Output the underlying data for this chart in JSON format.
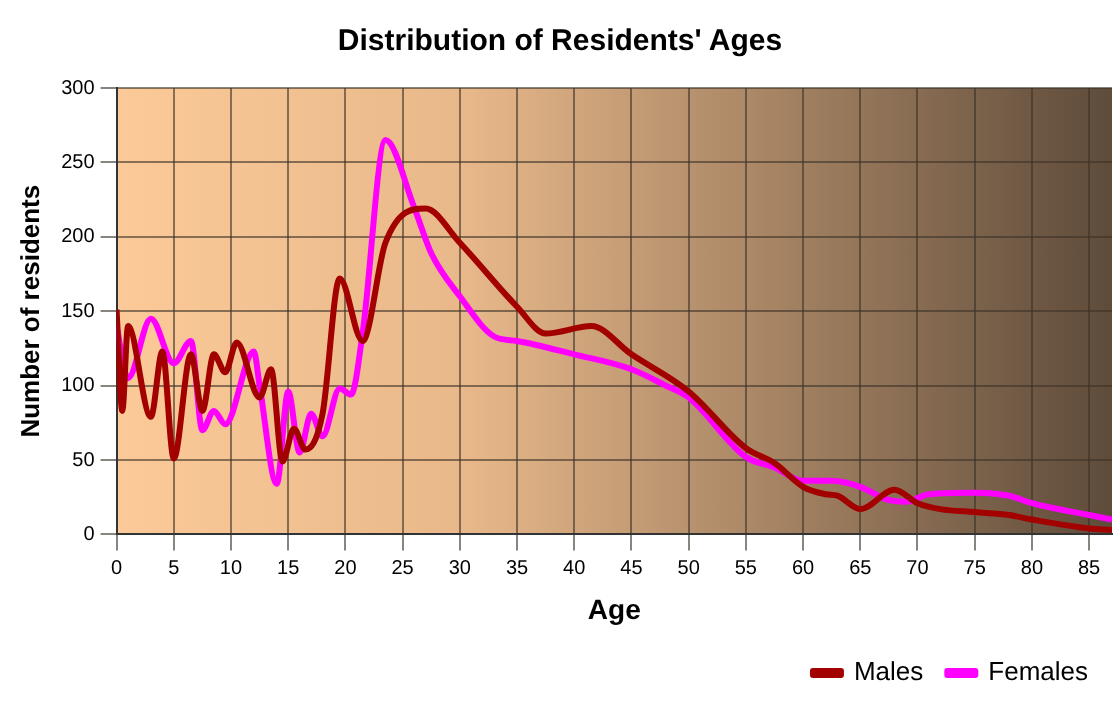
{
  "chart_data": {
    "type": "line",
    "title": "Distribution of Residents' Ages",
    "xlabel": "Age",
    "ylabel": "Number of residents",
    "xlim": [
      0,
      87
    ],
    "xticks": [
      0,
      5,
      10,
      15,
      20,
      25,
      30,
      35,
      40,
      45,
      50,
      55,
      60,
      65,
      70,
      75,
      80,
      85
    ],
    "ylim": [
      0,
      300
    ],
    "yticks": [
      0,
      50,
      100,
      150,
      200,
      250,
      300
    ],
    "grid": true,
    "legend": "bottom right",
    "marker": "none",
    "line_style": "solid",
    "series": [
      {
        "name": "Males",
        "color": "#a30000",
        "x": [
          0,
          0.5,
          1,
          3,
          4,
          5,
          6.5,
          7.5,
          8.5,
          9.5,
          10.5,
          12.5,
          13.5,
          14.5,
          15.5,
          16.5,
          18,
          19.5,
          21.5,
          23.5,
          27,
          30,
          35,
          37.5,
          41.5,
          45,
          50,
          55,
          57.5,
          60,
          62,
          63,
          65,
          68,
          70,
          72,
          75,
          78,
          80,
          85,
          87
        ],
        "values": [
          151,
          83,
          140,
          79,
          123,
          51,
          121,
          83,
          121,
          109,
          129,
          92,
          111,
          49,
          71,
          57,
          81,
          172,
          130,
          196,
          219,
          196,
          153,
          135,
          140,
          121,
          96,
          58,
          48,
          32,
          27,
          26,
          17,
          30,
          21,
          17,
          15,
          13,
          10,
          4,
          3
        ]
      },
      {
        "name": "Females",
        "color": "#ff00ff",
        "x": [
          0,
          1,
          3,
          5,
          6.5,
          7.5,
          8.5,
          9.5,
          12,
          12.5,
          14,
          15,
          16,
          17,
          18,
          19.5,
          20.5,
          21.5,
          23.5,
          26,
          27.5,
          30,
          33,
          35,
          40,
          45,
          48,
          50,
          55,
          57.5,
          60,
          62.5,
          65,
          67.5,
          69,
          71,
          75,
          78,
          80,
          85,
          87
        ],
        "values": [
          140,
          105,
          145,
          115,
          130,
          70,
          83,
          74,
          123,
          100,
          34,
          96,
          55,
          81,
          66,
          98,
          94,
          135,
          265,
          220,
          189,
          160,
          133,
          130,
          121,
          111,
          100,
          92,
          52,
          45,
          36,
          36,
          32,
          23,
          22,
          27,
          28,
          26,
          21,
          13,
          10
        ]
      }
    ]
  }
}
